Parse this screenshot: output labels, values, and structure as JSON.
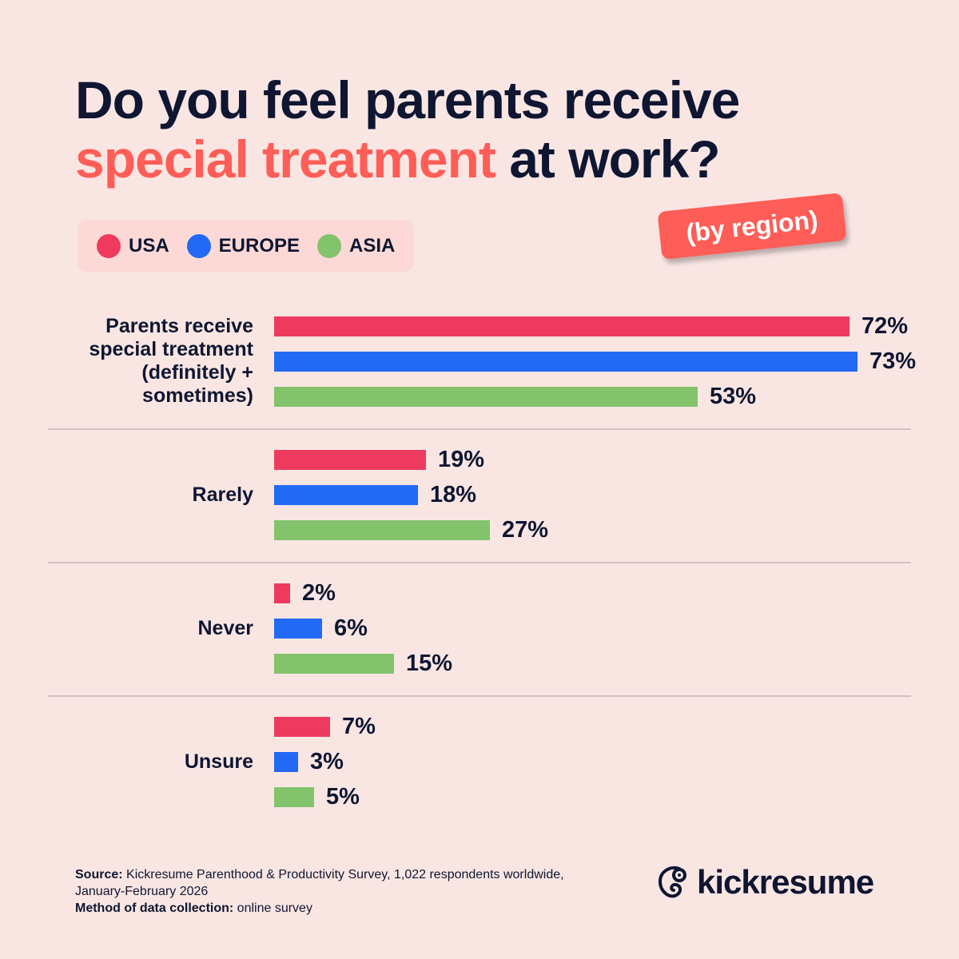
{
  "title": {
    "line1": "Do you feel parents receive",
    "accent": "special treatment",
    "rest": " at work?"
  },
  "badge": "(by region)",
  "legend": [
    {
      "label": "USA",
      "color": "#ee3a5f"
    },
    {
      "label": "EUROPE",
      "color": "#2269f5"
    },
    {
      "label": "ASIA",
      "color": "#82c36c"
    }
  ],
  "chart_data": {
    "type": "bar",
    "orientation": "horizontal",
    "categories": [
      "Parents receive\nspecial treatment\n(definitely +\nsometimes)",
      "Rarely",
      "Never",
      "Unsure"
    ],
    "series": [
      {
        "name": "USA",
        "color": "#ee3a5f",
        "values": [
          72,
          19,
          2,
          7
        ]
      },
      {
        "name": "EUROPE",
        "color": "#2269f5",
        "values": [
          73,
          18,
          6,
          3
        ]
      },
      {
        "name": "ASIA",
        "color": "#82c36c",
        "values": [
          53,
          27,
          15,
          5
        ]
      }
    ],
    "value_suffix": "%",
    "xlim": [
      0,
      100
    ],
    "grid": false,
    "legend_position": "top-left"
  },
  "footer": {
    "source_label": "Source:",
    "source_text": " Kickresume Parenthood & Productivity Survey, 1,022 respondents worldwide,",
    "source_text2": "January-February 2026",
    "method_label": "Method of data collection:",
    "method_text": " online survey"
  },
  "logo": {
    "text": "kickresume",
    "icon": "kickresume-chameleon-icon"
  }
}
